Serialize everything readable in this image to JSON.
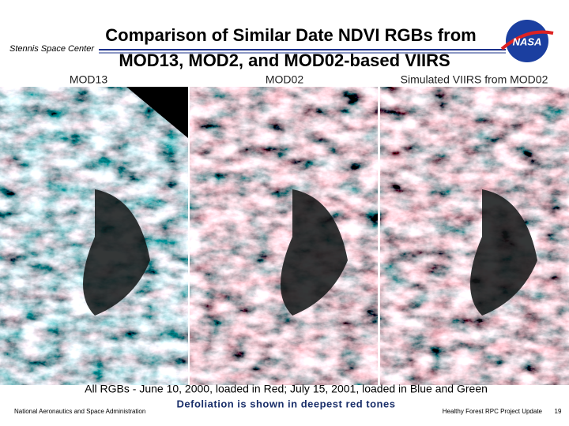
{
  "header": {
    "title_line1": "Comparison of Similar Date NDVI RGBs from",
    "title_line2": "MOD13, MOD2, and MOD02-based VIIRS",
    "center": "Stennis Space Center",
    "logo_text": "NASA"
  },
  "panels": [
    {
      "label": "MOD13"
    },
    {
      "label": "MOD02"
    },
    {
      "label": "Simulated VIIRS from MOD02"
    }
  ],
  "caption": {
    "line1": "All RGBs  - June 10, 2000, loaded in Red; July 15, 2001, loaded in Blue and Green",
    "line2": "Defoliation is shown in deepest red tones"
  },
  "footer": {
    "agency": "National Aeronautics and Space Administration",
    "project": "Healthy Forest RPC Project Update",
    "page": "19"
  }
}
